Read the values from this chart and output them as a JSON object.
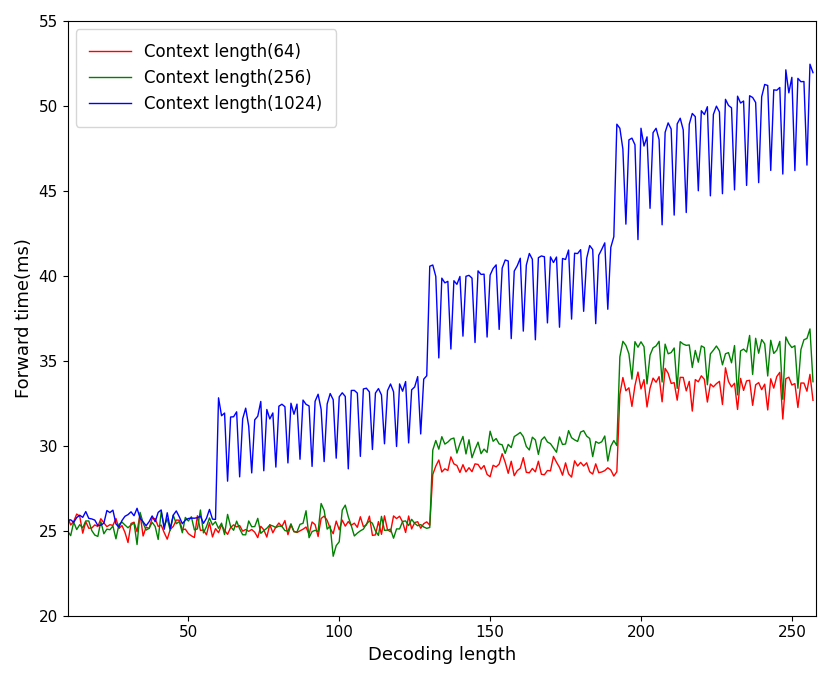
{
  "xlabel": "Decoding length",
  "ylabel": "Forward time(ms)",
  "xlim": [
    10,
    258
  ],
  "ylim": [
    20,
    55
  ],
  "xticks": [
    50,
    100,
    150,
    200,
    250
  ],
  "yticks": [
    20,
    25,
    30,
    35,
    40,
    45,
    50,
    55
  ],
  "legend": [
    {
      "label": "Context length(64)",
      "color": "#ff0000"
    },
    {
      "label": "Context length(256)",
      "color": "#008000"
    },
    {
      "label": "Context length(1024)",
      "color": "#0000ff"
    }
  ],
  "figsize": [
    8.31,
    6.79
  ],
  "dpi": 100,
  "line_width": 1.0
}
